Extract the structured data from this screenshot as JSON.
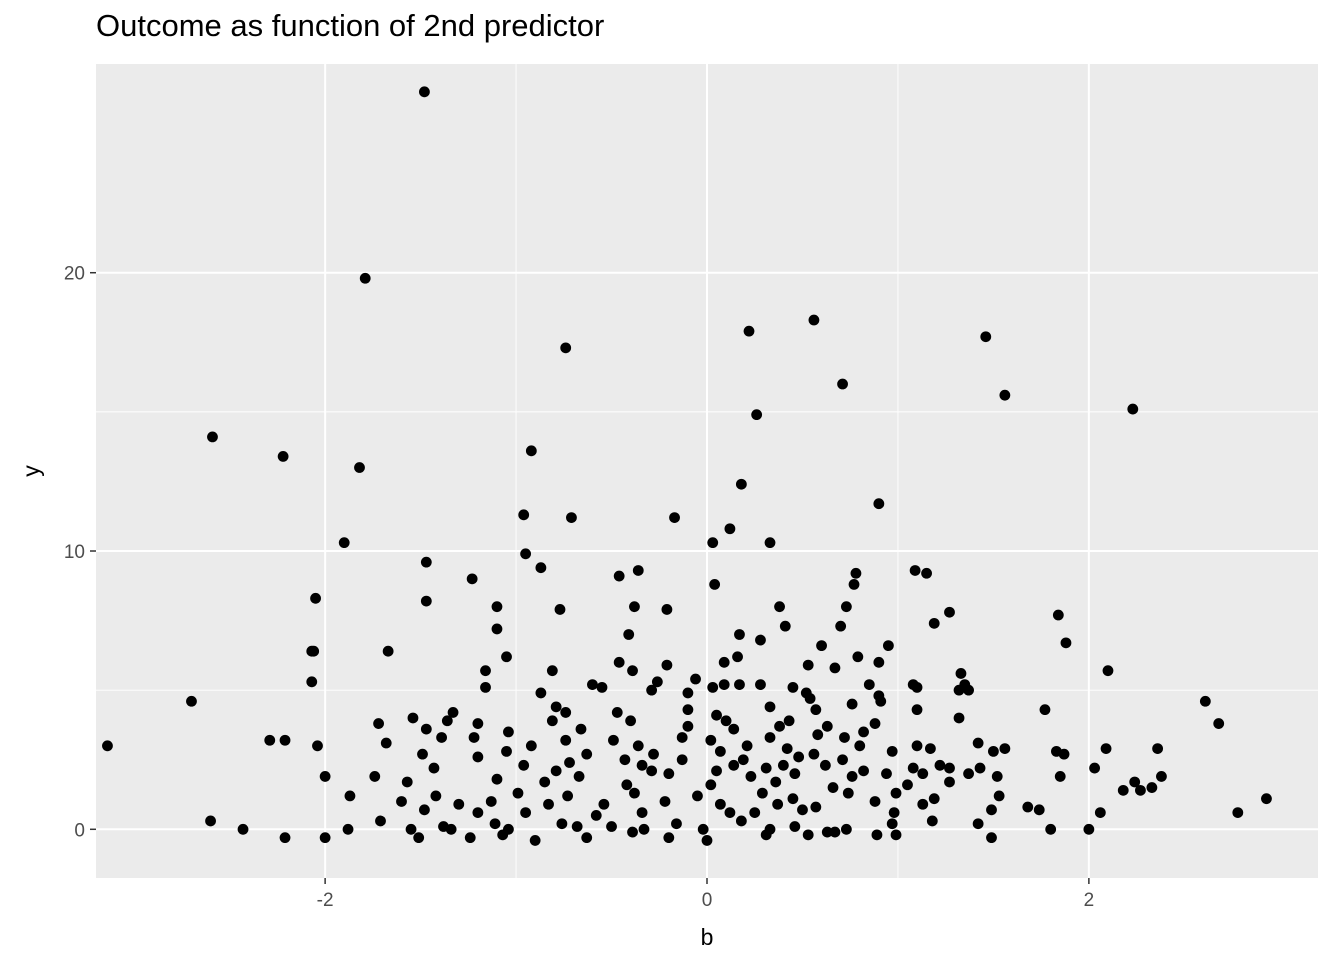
{
  "chart_data": {
    "type": "scatter",
    "title": "Outcome as function of 2nd predictor",
    "xlabel": "b",
    "ylabel": "y",
    "xlim": [
      -3.2,
      3.2
    ],
    "ylim": [
      -1.75,
      27.5
    ],
    "x_ticks": [
      {
        "value": -2,
        "label": "-2"
      },
      {
        "value": 0,
        "label": "0"
      },
      {
        "value": 2,
        "label": "2"
      }
    ],
    "y_ticks": [
      {
        "value": 0,
        "label": "0"
      },
      {
        "value": 10,
        "label": "10"
      },
      {
        "value": 20,
        "label": "20"
      }
    ],
    "grid": true,
    "panel_background": "#ebebeb",
    "grid_color": "#ffffff",
    "point_color": "#000000",
    "points": [
      [
        -1.48,
        26.5
      ],
      [
        -1.79,
        19.8
      ],
      [
        -0.74,
        17.3
      ],
      [
        0.22,
        17.9
      ],
      [
        0.56,
        18.3
      ],
      [
        1.46,
        17.7
      ],
      [
        0.71,
        16.0
      ],
      [
        1.56,
        15.6
      ],
      [
        2.23,
        15.1
      ],
      [
        0.26,
        14.9
      ],
      [
        -2.59,
        14.1
      ],
      [
        -2.22,
        13.4
      ],
      [
        -1.82,
        13.0
      ],
      [
        -0.92,
        13.6
      ],
      [
        0.18,
        12.4
      ],
      [
        0.9,
        11.7
      ],
      [
        -0.96,
        11.3
      ],
      [
        -0.71,
        11.2
      ],
      [
        -0.17,
        11.2
      ],
      [
        0.12,
        10.8
      ],
      [
        0.03,
        10.3
      ],
      [
        0.33,
        10.3
      ],
      [
        -1.9,
        10.3
      ],
      [
        -0.95,
        9.9
      ],
      [
        -1.47,
        9.6
      ],
      [
        -0.87,
        9.4
      ],
      [
        -0.36,
        9.3
      ],
      [
        -0.46,
        9.1
      ],
      [
        1.09,
        9.3
      ],
      [
        1.15,
        9.2
      ],
      [
        0.78,
        9.2
      ],
      [
        -1.23,
        9.0
      ],
      [
        0.04,
        8.8
      ],
      [
        0.77,
        8.8
      ],
      [
        -2.05,
        8.3
      ],
      [
        -1.47,
        8.2
      ],
      [
        -1.1,
        8.0
      ],
      [
        -0.77,
        7.9
      ],
      [
        -0.38,
        8.0
      ],
      [
        -0.21,
        7.9
      ],
      [
        0.38,
        8.0
      ],
      [
        0.73,
        8.0
      ],
      [
        1.27,
        7.8
      ],
      [
        1.84,
        7.7
      ],
      [
        -1.1,
        7.2
      ],
      [
        0.41,
        7.3
      ],
      [
        0.7,
        7.3
      ],
      [
        1.19,
        7.4
      ],
      [
        -0.41,
        7.0
      ],
      [
        0.17,
        7.0
      ],
      [
        0.28,
        6.8
      ],
      [
        0.95,
        6.6
      ],
      [
        1.88,
        6.7
      ],
      [
        -2.07,
        6.4
      ],
      [
        -2.06,
        6.4
      ],
      [
        -1.67,
        6.4
      ],
      [
        -1.05,
        6.2
      ],
      [
        0.16,
        6.2
      ],
      [
        0.6,
        6.6
      ],
      [
        0.79,
        6.2
      ],
      [
        -0.46,
        6.0
      ],
      [
        -0.21,
        5.9
      ],
      [
        0.09,
        6.0
      ],
      [
        0.67,
        5.8
      ],
      [
        0.9,
        6.0
      ],
      [
        -1.16,
        5.7
      ],
      [
        -0.81,
        5.7
      ],
      [
        -0.39,
        5.7
      ],
      [
        0.53,
        5.9
      ],
      [
        2.1,
        5.7
      ],
      [
        1.33,
        5.6
      ],
      [
        -2.07,
        5.3
      ],
      [
        -0.6,
        5.2
      ],
      [
        -0.55,
        5.1
      ],
      [
        -0.26,
        5.3
      ],
      [
        -0.06,
        5.4
      ],
      [
        0.09,
        5.2
      ],
      [
        0.17,
        5.2
      ],
      [
        0.28,
        5.2
      ],
      [
        0.45,
        5.1
      ],
      [
        0.85,
        5.2
      ],
      [
        1.08,
        5.2
      ],
      [
        1.1,
        5.1
      ],
      [
        1.35,
        5.2
      ],
      [
        -1.16,
        5.1
      ],
      [
        -0.29,
        5.0
      ],
      [
        -0.1,
        4.9
      ],
      [
        -0.87,
        4.9
      ],
      [
        0.03,
        5.1
      ],
      [
        0.52,
        4.9
      ],
      [
        0.54,
        4.7
      ],
      [
        0.9,
        4.8
      ],
      [
        1.32,
        5.0
      ],
      [
        1.37,
        5.0
      ],
      [
        -2.7,
        4.6
      ],
      [
        2.61,
        4.6
      ],
      [
        -0.79,
        4.4
      ],
      [
        -0.1,
        4.3
      ],
      [
        0.33,
        4.4
      ],
      [
        0.76,
        4.5
      ],
      [
        0.91,
        4.6
      ],
      [
        1.1,
        4.3
      ],
      [
        1.77,
        4.3
      ],
      [
        -1.33,
        4.2
      ],
      [
        -0.74,
        4.2
      ],
      [
        -0.47,
        4.2
      ],
      [
        0.05,
        4.1
      ],
      [
        0.57,
        4.3
      ],
      [
        1.32,
        4.0
      ],
      [
        -1.54,
        4.0
      ],
      [
        -1.36,
        3.9
      ],
      [
        -0.81,
        3.9
      ],
      [
        -0.4,
        3.9
      ],
      [
        0.1,
        3.9
      ],
      [
        0.43,
        3.9
      ],
      [
        -1.72,
        3.8
      ],
      [
        -1.47,
        3.6
      ],
      [
        -1.2,
        3.8
      ],
      [
        -0.66,
        3.6
      ],
      [
        -0.1,
        3.7
      ],
      [
        0.38,
        3.7
      ],
      [
        0.63,
        3.7
      ],
      [
        0.88,
        3.8
      ],
      [
        2.68,
        3.8
      ],
      [
        -1.04,
        3.5
      ],
      [
        0.14,
        3.6
      ],
      [
        0.82,
        3.5
      ],
      [
        -2.29,
        3.2
      ],
      [
        -2.21,
        3.2
      ],
      [
        -1.39,
        3.3
      ],
      [
        -1.22,
        3.3
      ],
      [
        -0.74,
        3.2
      ],
      [
        -0.49,
        3.2
      ],
      [
        -0.13,
        3.3
      ],
      [
        0.02,
        3.2
      ],
      [
        0.33,
        3.3
      ],
      [
        0.58,
        3.4
      ],
      [
        0.72,
        3.3
      ],
      [
        -3.14,
        3.0
      ],
      [
        -2.04,
        3.0
      ],
      [
        -1.68,
        3.1
      ],
      [
        -0.92,
        3.0
      ],
      [
        -0.36,
        3.0
      ],
      [
        0.21,
        3.0
      ],
      [
        0.42,
        2.9
      ],
      [
        0.8,
        3.0
      ],
      [
        1.1,
        3.0
      ],
      [
        1.17,
        2.9
      ],
      [
        1.42,
        3.1
      ],
      [
        1.56,
        2.9
      ],
      [
        1.83,
        2.8
      ],
      [
        2.09,
        2.9
      ],
      [
        2.36,
        2.9
      ],
      [
        -1.49,
        2.7
      ],
      [
        -1.05,
        2.8
      ],
      [
        -0.63,
        2.7
      ],
      [
        -0.28,
        2.7
      ],
      [
        0.07,
        2.8
      ],
      [
        0.56,
        2.7
      ],
      [
        0.97,
        2.8
      ],
      [
        1.5,
        2.8
      ],
      [
        1.87,
        2.7
      ],
      [
        -1.2,
        2.6
      ],
      [
        -0.43,
        2.5
      ],
      [
        -0.13,
        2.5
      ],
      [
        0.19,
        2.5
      ],
      [
        0.48,
        2.6
      ],
      [
        0.71,
        2.5
      ],
      [
        -0.96,
        2.3
      ],
      [
        -0.72,
        2.4
      ],
      [
        -0.34,
        2.3
      ],
      [
        0.14,
        2.3
      ],
      [
        0.4,
        2.3
      ],
      [
        0.62,
        2.3
      ],
      [
        1.22,
        2.3
      ],
      [
        1.43,
        2.2
      ],
      [
        2.03,
        2.2
      ],
      [
        -1.43,
        2.2
      ],
      [
        -0.79,
        2.1
      ],
      [
        -0.29,
        2.1
      ],
      [
        0.05,
        2.1
      ],
      [
        0.31,
        2.2
      ],
      [
        0.82,
        2.1
      ],
      [
        1.08,
        2.2
      ],
      [
        1.27,
        2.2
      ],
      [
        -2.0,
        1.9
      ],
      [
        -1.74,
        1.9
      ],
      [
        -1.1,
        1.8
      ],
      [
        -0.67,
        1.9
      ],
      [
        -0.2,
        2.0
      ],
      [
        0.23,
        1.9
      ],
      [
        0.46,
        2.0
      ],
      [
        0.76,
        1.9
      ],
      [
        0.94,
        2.0
      ],
      [
        1.13,
        2.0
      ],
      [
        1.37,
        2.0
      ],
      [
        1.52,
        1.9
      ],
      [
        1.85,
        1.9
      ],
      [
        2.38,
        1.9
      ],
      [
        -1.57,
        1.7
      ],
      [
        -0.85,
        1.7
      ],
      [
        -0.42,
        1.6
      ],
      [
        0.02,
        1.6
      ],
      [
        0.36,
        1.7
      ],
      [
        0.66,
        1.5
      ],
      [
        1.05,
        1.6
      ],
      [
        1.27,
        1.7
      ],
      [
        2.24,
        1.7
      ],
      [
        2.33,
        1.5
      ],
      [
        -1.87,
        1.2
      ],
      [
        -1.42,
        1.2
      ],
      [
        -0.99,
        1.3
      ],
      [
        -0.73,
        1.2
      ],
      [
        -0.38,
        1.3
      ],
      [
        -0.05,
        1.2
      ],
      [
        0.29,
        1.3
      ],
      [
        0.45,
        1.1
      ],
      [
        0.74,
        1.3
      ],
      [
        0.99,
        1.3
      ],
      [
        1.19,
        1.1
      ],
      [
        1.53,
        1.2
      ],
      [
        2.18,
        1.4
      ],
      [
        2.27,
        1.4
      ],
      [
        -1.6,
        1.0
      ],
      [
        -1.3,
        0.9
      ],
      [
        -1.13,
        1.0
      ],
      [
        -0.83,
        0.9
      ],
      [
        -0.54,
        0.9
      ],
      [
        -0.22,
        1.0
      ],
      [
        0.07,
        0.9
      ],
      [
        0.37,
        0.9
      ],
      [
        0.57,
        0.8
      ],
      [
        0.88,
        1.0
      ],
      [
        1.13,
        0.9
      ],
      [
        1.68,
        0.8
      ],
      [
        1.74,
        0.7
      ],
      [
        2.93,
        1.1
      ],
      [
        -1.48,
        0.7
      ],
      [
        -1.2,
        0.6
      ],
      [
        -0.95,
        0.6
      ],
      [
        -0.58,
        0.5
      ],
      [
        -0.34,
        0.6
      ],
      [
        0.12,
        0.6
      ],
      [
        0.5,
        0.7
      ],
      [
        0.98,
        0.6
      ],
      [
        1.49,
        0.7
      ],
      [
        2.06,
        0.6
      ],
      [
        2.78,
        0.6
      ],
      [
        -2.6,
        0.3
      ],
      [
        -1.71,
        0.3
      ],
      [
        -1.38,
        0.1
      ],
      [
        -1.11,
        0.2
      ],
      [
        -0.76,
        0.2
      ],
      [
        -0.5,
        0.1
      ],
      [
        -0.16,
        0.2
      ],
      [
        0.18,
        0.3
      ],
      [
        0.46,
        0.1
      ],
      [
        0.73,
        0.0
      ],
      [
        0.97,
        0.2
      ],
      [
        1.42,
        0.2
      ],
      [
        1.8,
        0.0
      ],
      [
        2.0,
        0.0
      ],
      [
        -2.43,
        0.0
      ],
      [
        -1.88,
        0.0
      ],
      [
        -1.55,
        0.0
      ],
      [
        -1.34,
        0.0
      ],
      [
        -1.04,
        0.0
      ],
      [
        -0.68,
        0.1
      ],
      [
        -0.33,
        0.0
      ],
      [
        -0.02,
        0.0
      ],
      [
        0.33,
        0.0
      ],
      [
        0.63,
        -0.1
      ],
      [
        0.89,
        -0.2
      ],
      [
        1.18,
        0.3
      ],
      [
        -2.21,
        -0.3
      ],
      [
        -2.0,
        -0.3
      ],
      [
        -1.51,
        -0.3
      ],
      [
        -1.24,
        -0.3
      ],
      [
        -0.9,
        -0.4
      ],
      [
        -0.63,
        -0.3
      ],
      [
        -0.2,
        -0.3
      ],
      [
        0.0,
        -0.4
      ],
      [
        0.31,
        -0.2
      ],
      [
        0.53,
        -0.2
      ],
      [
        0.67,
        -0.1
      ],
      [
        0.99,
        -0.2
      ],
      [
        1.49,
        -0.3
      ],
      [
        -1.07,
        -0.2
      ],
      [
        -0.39,
        -0.1
      ],
      [
        0.25,
        0.6
      ]
    ]
  }
}
